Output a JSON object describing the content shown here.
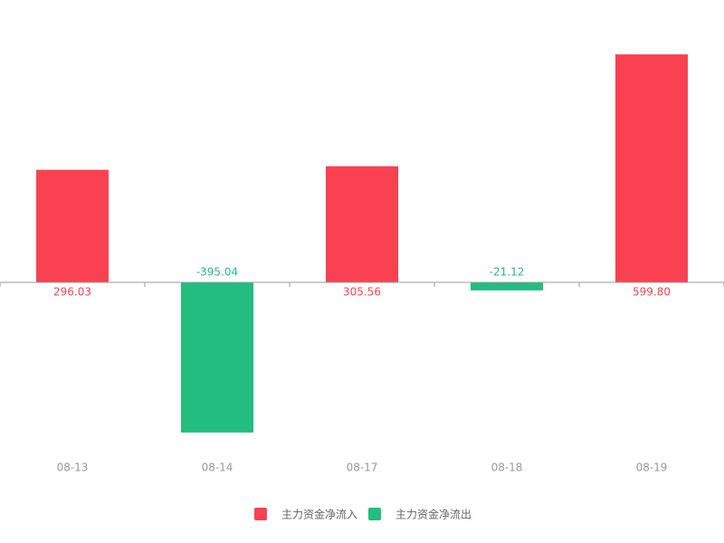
{
  "chart_data": {
    "type": "bar",
    "categories": [
      "08-13",
      "08-14",
      "08-17",
      "08-18",
      "08-19"
    ],
    "series": [
      {
        "name": "主力资金净流入",
        "color": "#f94151",
        "values": [
          296.03,
          null,
          305.56,
          null,
          599.8
        ],
        "value_labels": [
          "296.03",
          null,
          "305.56",
          null,
          "599.80"
        ]
      },
      {
        "name": "主力资金净流出",
        "color": "#22bd7f",
        "values": [
          null,
          -395.04,
          null,
          -21.12,
          null
        ],
        "value_labels": [
          null,
          "-395.04",
          null,
          "-21.12",
          null
        ]
      }
    ],
    "ylim": [
      -500,
      600
    ]
  }
}
